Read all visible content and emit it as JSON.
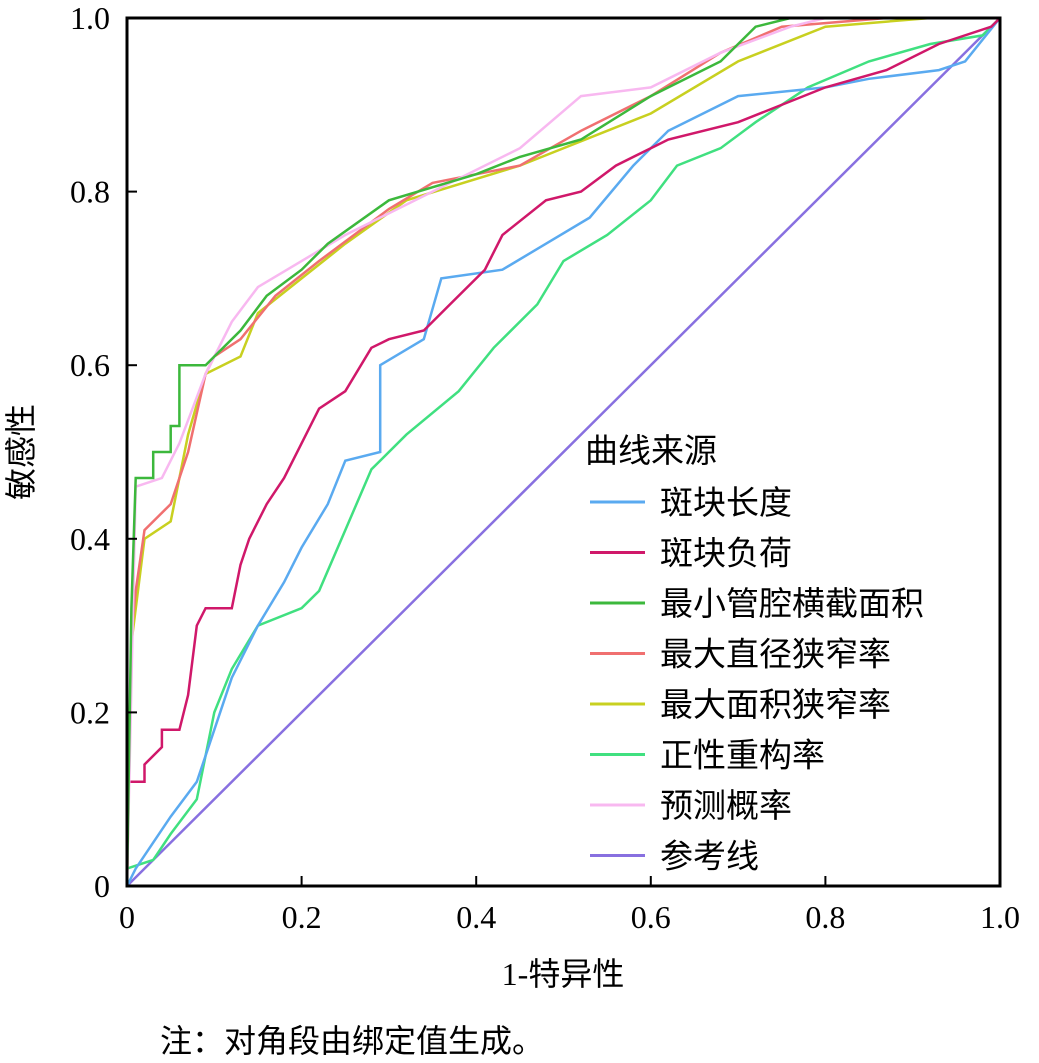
{
  "chart_data": {
    "type": "line",
    "title": "",
    "xlabel": "1-特异性",
    "ylabel": "敏感性",
    "xlim": [
      0,
      1
    ],
    "ylim": [
      0,
      1
    ],
    "xticks": [
      {
        "v": 0,
        "label": "0"
      },
      {
        "v": 0.2,
        "label": "0.2"
      },
      {
        "v": 0.4,
        "label": "0.4"
      },
      {
        "v": 0.6,
        "label": "0.6"
      },
      {
        "v": 0.8,
        "label": "0.8"
      },
      {
        "v": 1,
        "label": "1.0"
      }
    ],
    "yticks": [
      {
        "v": 0,
        "label": "0"
      },
      {
        "v": 0.2,
        "label": "0.2"
      },
      {
        "v": 0.4,
        "label": "0.4"
      },
      {
        "v": 0.6,
        "label": "0.6"
      },
      {
        "v": 0.8,
        "label": "0.8"
      },
      {
        "v": 1,
        "label": "1.0"
      }
    ],
    "grid": false,
    "legend": {
      "title": "曲线来源",
      "placement": "bottom-right"
    },
    "note": "注：对角段由绑定值生成。",
    "series": [
      {
        "name": "斑块长度",
        "color": "#5aaaf0",
        "points": [
          [
            0,
            0
          ],
          [
            0.01,
            0.02
          ],
          [
            0.03,
            0.05
          ],
          [
            0.05,
            0.08
          ],
          [
            0.08,
            0.12
          ],
          [
            0.1,
            0.18
          ],
          [
            0.12,
            0.24
          ],
          [
            0.15,
            0.3
          ],
          [
            0.18,
            0.35
          ],
          [
            0.2,
            0.39
          ],
          [
            0.23,
            0.44
          ],
          [
            0.25,
            0.49
          ],
          [
            0.29,
            0.5
          ],
          [
            0.29,
            0.6
          ],
          [
            0.34,
            0.63
          ],
          [
            0.36,
            0.7
          ],
          [
            0.43,
            0.71
          ],
          [
            0.48,
            0.74
          ],
          [
            0.53,
            0.77
          ],
          [
            0.58,
            0.83
          ],
          [
            0.62,
            0.87
          ],
          [
            0.7,
            0.91
          ],
          [
            0.8,
            0.92
          ],
          [
            0.85,
            0.93
          ],
          [
            0.93,
            0.94
          ],
          [
            0.96,
            0.95
          ],
          [
            1,
            1
          ]
        ]
      },
      {
        "name": "斑块负荷",
        "color": "#d0186a",
        "points": [
          [
            0,
            0
          ],
          [
            0,
            0.12
          ],
          [
            0.02,
            0.12
          ],
          [
            0.02,
            0.14
          ],
          [
            0.04,
            0.16
          ],
          [
            0.04,
            0.18
          ],
          [
            0.06,
            0.18
          ],
          [
            0.07,
            0.22
          ],
          [
            0.08,
            0.3
          ],
          [
            0.09,
            0.32
          ],
          [
            0.12,
            0.32
          ],
          [
            0.13,
            0.37
          ],
          [
            0.14,
            0.4
          ],
          [
            0.16,
            0.44
          ],
          [
            0.18,
            0.47
          ],
          [
            0.2,
            0.51
          ],
          [
            0.22,
            0.55
          ],
          [
            0.25,
            0.57
          ],
          [
            0.28,
            0.62
          ],
          [
            0.3,
            0.63
          ],
          [
            0.34,
            0.64
          ],
          [
            0.37,
            0.67
          ],
          [
            0.41,
            0.71
          ],
          [
            0.43,
            0.75
          ],
          [
            0.48,
            0.79
          ],
          [
            0.52,
            0.8
          ],
          [
            0.56,
            0.83
          ],
          [
            0.6,
            0.85
          ],
          [
            0.62,
            0.86
          ],
          [
            0.7,
            0.88
          ],
          [
            0.8,
            0.92
          ],
          [
            0.87,
            0.94
          ],
          [
            0.93,
            0.97
          ],
          [
            0.99,
            0.99
          ],
          [
            1,
            1
          ]
        ]
      },
      {
        "name": "最小管腔横截面积",
        "color": "#3cb83c",
        "points": [
          [
            0,
            0
          ],
          [
            0.005,
            0.32
          ],
          [
            0.01,
            0.47
          ],
          [
            0.03,
            0.47
          ],
          [
            0.03,
            0.5
          ],
          [
            0.05,
            0.5
          ],
          [
            0.05,
            0.53
          ],
          [
            0.06,
            0.53
          ],
          [
            0.06,
            0.6
          ],
          [
            0.09,
            0.6
          ],
          [
            0.1,
            0.61
          ],
          [
            0.13,
            0.64
          ],
          [
            0.16,
            0.68
          ],
          [
            0.2,
            0.71
          ],
          [
            0.23,
            0.74
          ],
          [
            0.3,
            0.79
          ],
          [
            0.4,
            0.82
          ],
          [
            0.45,
            0.84
          ],
          [
            0.52,
            0.86
          ],
          [
            0.6,
            0.91
          ],
          [
            0.68,
            0.95
          ],
          [
            0.72,
            0.99
          ],
          [
            0.76,
            1
          ],
          [
            1,
            1
          ]
        ]
      },
      {
        "name": "最大直径狭窄率",
        "color": "#f07070",
        "points": [
          [
            0,
            0
          ],
          [
            0.005,
            0.29
          ],
          [
            0.01,
            0.34
          ],
          [
            0.02,
            0.41
          ],
          [
            0.05,
            0.44
          ],
          [
            0.07,
            0.5
          ],
          [
            0.09,
            0.59
          ],
          [
            0.1,
            0.61
          ],
          [
            0.13,
            0.63
          ],
          [
            0.17,
            0.68
          ],
          [
            0.22,
            0.72
          ],
          [
            0.3,
            0.78
          ],
          [
            0.35,
            0.81
          ],
          [
            0.45,
            0.83
          ],
          [
            0.52,
            0.87
          ],
          [
            0.6,
            0.91
          ],
          [
            0.68,
            0.96
          ],
          [
            0.75,
            0.99
          ],
          [
            0.87,
            1
          ],
          [
            1,
            1
          ]
        ]
      },
      {
        "name": "最大面积狭窄率",
        "color": "#c8d020",
        "points": [
          [
            0,
            0
          ],
          [
            0.005,
            0.28
          ],
          [
            0.02,
            0.4
          ],
          [
            0.05,
            0.42
          ],
          [
            0.07,
            0.52
          ],
          [
            0.09,
            0.59
          ],
          [
            0.13,
            0.61
          ],
          [
            0.15,
            0.66
          ],
          [
            0.2,
            0.7
          ],
          [
            0.25,
            0.74
          ],
          [
            0.32,
            0.79
          ],
          [
            0.45,
            0.83
          ],
          [
            0.55,
            0.87
          ],
          [
            0.6,
            0.89
          ],
          [
            0.7,
            0.95
          ],
          [
            0.8,
            0.99
          ],
          [
            0.92,
            1
          ],
          [
            1,
            1
          ]
        ]
      },
      {
        "name": "正性重构率",
        "color": "#40e080",
        "points": [
          [
            0,
            0
          ],
          [
            0,
            0.02
          ],
          [
            0.03,
            0.03
          ],
          [
            0.05,
            0.06
          ],
          [
            0.08,
            0.1
          ],
          [
            0.1,
            0.2
          ],
          [
            0.12,
            0.25
          ],
          [
            0.15,
            0.3
          ],
          [
            0.2,
            0.32
          ],
          [
            0.22,
            0.34
          ],
          [
            0.25,
            0.41
          ],
          [
            0.28,
            0.48
          ],
          [
            0.32,
            0.52
          ],
          [
            0.38,
            0.57
          ],
          [
            0.42,
            0.62
          ],
          [
            0.47,
            0.67
          ],
          [
            0.5,
            0.72
          ],
          [
            0.55,
            0.75
          ],
          [
            0.6,
            0.79
          ],
          [
            0.63,
            0.83
          ],
          [
            0.68,
            0.85
          ],
          [
            0.72,
            0.88
          ],
          [
            0.78,
            0.92
          ],
          [
            0.85,
            0.95
          ],
          [
            0.92,
            0.97
          ],
          [
            0.98,
            0.98
          ],
          [
            1,
            1
          ]
        ]
      },
      {
        "name": "预测概率",
        "color": "#f8b8f0",
        "points": [
          [
            0,
            0
          ],
          [
            0.01,
            0.46
          ],
          [
            0.04,
            0.47
          ],
          [
            0.06,
            0.51
          ],
          [
            0.09,
            0.59
          ],
          [
            0.12,
            0.65
          ],
          [
            0.15,
            0.69
          ],
          [
            0.25,
            0.75
          ],
          [
            0.35,
            0.8
          ],
          [
            0.45,
            0.85
          ],
          [
            0.52,
            0.91
          ],
          [
            0.6,
            0.92
          ],
          [
            0.68,
            0.96
          ],
          [
            0.76,
            0.99
          ],
          [
            0.8,
            1
          ],
          [
            1,
            1
          ]
        ]
      },
      {
        "name": "参考线",
        "color": "#8870e0",
        "points": [
          [
            0,
            0
          ],
          [
            1,
            1
          ]
        ]
      }
    ]
  }
}
